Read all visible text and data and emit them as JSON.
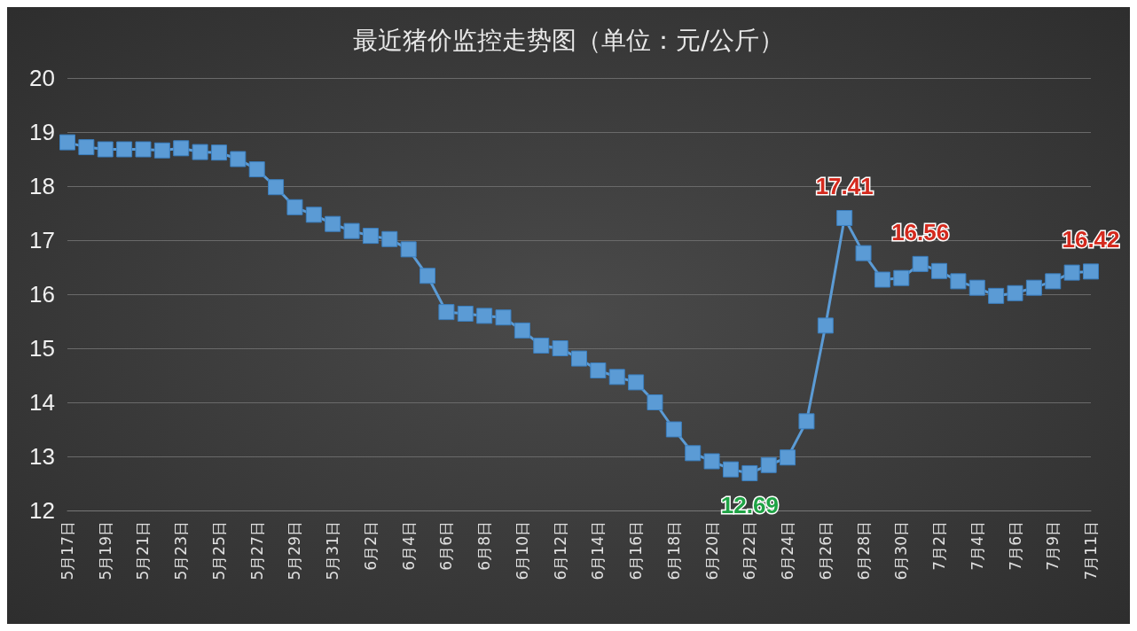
{
  "chart_data": {
    "type": "line",
    "title": "最近猪价监控走势图（单位：元/公斤）",
    "categories": [
      "5月17日",
      null,
      "5月19日",
      null,
      "5月21日",
      null,
      "5月23日",
      null,
      "5月25日",
      null,
      "5月27日",
      null,
      "5月29日",
      null,
      "5月31日",
      null,
      "6月2日",
      null,
      "6月4日",
      null,
      "6月6日",
      null,
      "6月8日",
      null,
      "6月10日",
      null,
      "6月12日",
      null,
      "6月14日",
      null,
      "6月16日",
      null,
      "6月18日",
      null,
      "6月20日",
      null,
      "6月22日",
      null,
      "6月24日",
      null,
      "6月26日",
      null,
      "6月28日",
      null,
      "6月30日",
      null,
      "7月2日",
      null,
      "7月4日",
      null,
      "7月6日",
      null,
      "7月9日",
      null,
      "7月11日"
    ],
    "series": [
      {
        "color": "#5b9bd5",
        "values": [
          18.81,
          18.72,
          18.68,
          18.68,
          18.68,
          18.66,
          18.7,
          18.63,
          18.62,
          18.5,
          18.31,
          17.98,
          17.61,
          17.47,
          17.3,
          17.17,
          17.08,
          17.02,
          16.83,
          16.34,
          15.67,
          15.64,
          15.6,
          15.57,
          15.33,
          15.05,
          15.0,
          14.81,
          14.59,
          14.47,
          14.37,
          14.0,
          13.5,
          13.06,
          12.91,
          12.76,
          12.69,
          12.84,
          12.98,
          13.65,
          15.42,
          17.41,
          16.76,
          16.27,
          16.3,
          16.56,
          16.43,
          16.24,
          16.12,
          15.97,
          16.02,
          16.12,
          16.24,
          16.4,
          16.42
        ],
        "value_labels": [
          null,
          null,
          null,
          null,
          null,
          null,
          null,
          null,
          null,
          null,
          null,
          null,
          null,
          null,
          null,
          null,
          null,
          null,
          null,
          null,
          null,
          null,
          null,
          null,
          null,
          null,
          null,
          null,
          null,
          null,
          null,
          null,
          null,
          null,
          null,
          null,
          "12.69",
          null,
          null,
          null,
          null,
          "17.41",
          null,
          null,
          null,
          "16.56",
          null,
          null,
          null,
          null,
          null,
          null,
          null,
          null,
          "16.42"
        ]
      }
    ],
    "ylim": [
      12,
      20
    ],
    "yticks": [
      12,
      13,
      14,
      15,
      16,
      17,
      18,
      19,
      20
    ],
    "grid": "y",
    "marker": "square",
    "line_style": "solid"
  }
}
